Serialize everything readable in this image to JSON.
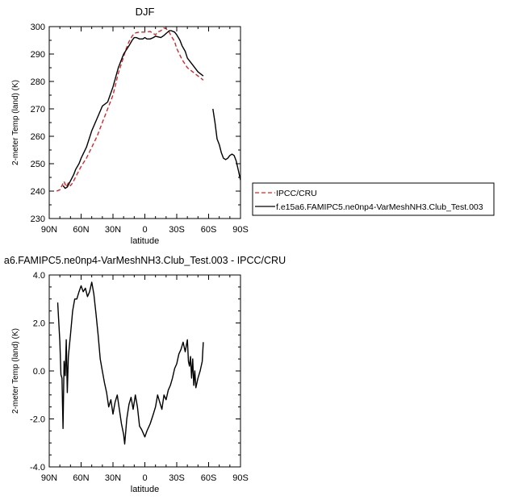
{
  "chart_data": [
    {
      "type": "line",
      "title": "DJF",
      "xlabel": "latitude",
      "ylabel": "2-meter Temp (land) (K)",
      "xlim": [
        -90,
        90
      ],
      "ylim": [
        230,
        300
      ],
      "x_ticks": [
        -90,
        -60,
        -30,
        0,
        30,
        60,
        90
      ],
      "x_tick_labels": [
        "90N",
        "60N",
        "30N",
        "0",
        "30S",
        "60S",
        "90S"
      ],
      "y_ticks": [
        230,
        240,
        250,
        260,
        270,
        280,
        290,
        300
      ],
      "y_tick_labels": [
        "230",
        "240",
        "250",
        "260",
        "270",
        "280",
        "290",
        "300"
      ],
      "legend_position": "right",
      "series": [
        {
          "name": "IPCC/CRU",
          "color": "#d62728",
          "dash": "dashed",
          "x": [
            -83,
            -80,
            -78,
            -76,
            -74,
            -72,
            -70,
            -68,
            -66,
            -64,
            -62,
            -60,
            -55,
            -50,
            -45,
            -40,
            -35,
            -30,
            -25,
            -20,
            -18,
            -15,
            -12,
            -10,
            -8,
            -5,
            0,
            5,
            8,
            10,
            12,
            15,
            18,
            20,
            22,
            25,
            28,
            30,
            35,
            40,
            45,
            50,
            55
          ],
          "y": [
            240,
            240.5,
            242,
            243.5,
            241.5,
            243,
            242,
            243,
            244.5,
            246,
            247.5,
            249,
            252,
            256,
            260,
            265,
            270,
            275,
            283,
            289,
            291.5,
            294.5,
            296.5,
            297.5,
            297.8,
            298,
            298,
            298.2,
            297.5,
            297,
            298,
            298.5,
            299.5,
            299.2,
            298.6,
            296.5,
            294.5,
            292,
            288,
            285,
            283.5,
            282,
            280.5
          ]
        },
        {
          "name": "f.e15a6.FAMIPC5.ne0np4-VarMeshNH3.Club_Test.003",
          "color": "#000000",
          "dash": "solid",
          "segments": [
            {
              "x": [
                -77,
                -75,
                -73,
                -71,
                -69,
                -67,
                -65,
                -62,
                -60,
                -55,
                -50,
                -45,
                -40,
                -35,
                -30,
                -25,
                -20,
                -15,
                -12,
                -10,
                -8,
                -5,
                -2,
                0,
                2,
                5,
                8,
                10,
                15,
                18,
                20,
                23,
                25,
                28,
                30,
                33,
                35,
                38,
                40,
                45,
                50,
                55
              ],
              "y": [
                242,
                241,
                241.5,
                243,
                244.5,
                246,
                248,
                250,
                252,
                256,
                262,
                266.5,
                271,
                272.5,
                278,
                285,
                290,
                293,
                295,
                296,
                296,
                295.5,
                295.5,
                296,
                295.5,
                295.5,
                296,
                296.5,
                296,
                296.8,
                297.5,
                298.5,
                298.5,
                298,
                297,
                295,
                293,
                291,
                288.5,
                286,
                283.5,
                282
              ]
            },
            {
              "x": [
                64,
                66,
                68,
                70,
                72,
                74,
                76,
                78,
                80,
                82,
                84,
                86,
                88,
                90
              ],
              "y": [
                270,
                265,
                259,
                257,
                254,
                252,
                251.5,
                252,
                253,
                253.5,
                253,
                251,
                247.5,
                244
              ]
            }
          ]
        }
      ]
    },
    {
      "type": "line",
      "title": "a6.FAMIPC5.ne0np4-VarMeshNH3.Club_Test.003 - IPCC/CRU",
      "xlabel": "latitude",
      "ylabel": "2-meter Temp (land) (K)",
      "xlim": [
        -90,
        90
      ],
      "ylim": [
        -4,
        4
      ],
      "x_ticks": [
        -90,
        -60,
        -30,
        0,
        30,
        60,
        90
      ],
      "x_tick_labels": [
        "90N",
        "60N",
        "30N",
        "0",
        "30S",
        "60S",
        "90S"
      ],
      "y_ticks": [
        -4,
        -2,
        0,
        2,
        4
      ],
      "y_tick_labels": [
        "-4.0",
        "-2.0",
        "0.0",
        "2.0",
        "4.0"
      ],
      "series": [
        {
          "color": "#000000",
          "x": [
            -82,
            -80,
            -79,
            -78,
            -77,
            -76,
            -75,
            -74,
            -73,
            -72,
            -70,
            -68,
            -66,
            -64,
            -62,
            -60,
            -58,
            -56,
            -54,
            -52,
            -50,
            -48,
            -46,
            -44,
            -42,
            -40,
            -38,
            -36,
            -34,
            -32,
            -30,
            -28,
            -26,
            -24,
            -22,
            -20,
            -19,
            -17,
            -15,
            -13,
            -11,
            -9,
            -7,
            -5,
            -3,
            -1,
            0,
            2,
            5,
            8,
            10,
            12,
            14,
            16,
            18,
            20,
            22,
            24,
            26,
            28,
            30,
            32,
            34,
            36,
            38,
            40,
            41,
            42,
            43,
            44,
            45,
            46,
            47,
            48,
            50,
            52,
            54,
            55
          ],
          "y": [
            2.85,
            1.2,
            -0.15,
            -0.3,
            -2.4,
            0.4,
            -0.2,
            1.3,
            -0.9,
            0.6,
            1.5,
            2.5,
            3.0,
            3.0,
            3.3,
            3.55,
            3.3,
            3.45,
            3.1,
            3.3,
            3.7,
            3.2,
            2.4,
            1.5,
            0.5,
            0.0,
            -0.5,
            -0.9,
            -1.5,
            -1.2,
            -1.8,
            -1.3,
            -1.0,
            -1.6,
            -2.2,
            -2.65,
            -3.05,
            -2.0,
            -1.4,
            -1.1,
            -1.6,
            -1.0,
            -1.5,
            -2.3,
            -2.45,
            -2.65,
            -2.75,
            -2.5,
            -2.2,
            -1.8,
            -1.5,
            -1.0,
            -1.3,
            -1.6,
            -1.0,
            -1.2,
            -0.8,
            -0.6,
            -0.3,
            0.1,
            0.3,
            0.7,
            0.9,
            1.2,
            0.8,
            1.3,
            0.4,
            0.2,
            0.6,
            -0.3,
            0.5,
            -0.6,
            0.0,
            -0.7,
            -0.3,
            0.0,
            0.4,
            1.2
          ]
        }
      ]
    }
  ],
  "legend": {
    "labels": [
      "IPCC/CRU",
      "f.e15a6.FAMIPC5.ne0np4-VarMeshNH3.Club_Test.003"
    ]
  }
}
